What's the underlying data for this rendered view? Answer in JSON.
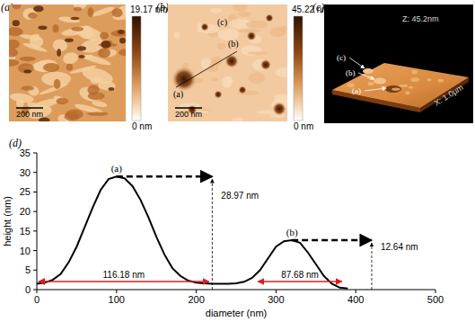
{
  "panels": [
    {
      "label": "(a)",
      "colorbar": {
        "max_label": "19.17 nm",
        "min_label": "0 nm"
      },
      "scale_bar": "200 nm"
    },
    {
      "label": "(b)",
      "colorbar": {
        "max_label": "45.22 nm",
        "min_label": "0 nm"
      },
      "scale_bar": "200 nm",
      "markers": [
        "(a)",
        "(b)",
        "(c)"
      ]
    },
    {
      "label": "(c)",
      "z_label": "Z: 45.2nm",
      "x_label": "X: 1.0µm",
      "markers": [
        "(c)",
        "(b)",
        "(a)"
      ]
    }
  ],
  "chart_data": {
    "panel_label": "(d)",
    "type": "line",
    "x_label": "diameter (nm)",
    "y_label": "height (nm)",
    "x": [
      0,
      10,
      20,
      30,
      40,
      50,
      60,
      70,
      80,
      90,
      100,
      110,
      120,
      130,
      140,
      150,
      160,
      170,
      180,
      190,
      200,
      210,
      220,
      230,
      240,
      250,
      260,
      270,
      280,
      290,
      300,
      310,
      320,
      330,
      340,
      350,
      360,
      370,
      380,
      390
    ],
    "values": [
      1.5,
      1.8,
      2.5,
      4,
      7,
      11,
      16,
      21,
      25.5,
      28.3,
      28.97,
      28.5,
      26.5,
      23,
      18.5,
      13.5,
      9,
      5.5,
      3.5,
      2.3,
      1.8,
      1.6,
      1.5,
      1.5,
      1.5,
      1.6,
      2,
      3,
      5,
      8,
      11,
      12.4,
      12.64,
      12,
      9.5,
      6.5,
      3.5,
      1.5,
      0.5,
      0.3
    ],
    "color": "#000000",
    "xlim": [
      0,
      500
    ],
    "ylim": [
      0,
      35
    ],
    "xticks": [
      0,
      100,
      200,
      300,
      400,
      500
    ],
    "yticks": [
      0,
      5,
      10,
      15,
      20,
      25,
      30,
      35
    ],
    "grid": false,
    "peaks": [
      {
        "label": "(a)",
        "x": 100,
        "height": 28.97,
        "height_label": "28.97 nm",
        "x_end": 220,
        "span": [
          0,
          218
        ],
        "span_label": "116.18 nm"
      },
      {
        "label": "(b)",
        "x": 320,
        "height": 12.64,
        "height_label": "12.64 nm",
        "x_end": 420,
        "span": [
          275,
          385
        ],
        "span_label": "87.68 nm"
      }
    ]
  }
}
